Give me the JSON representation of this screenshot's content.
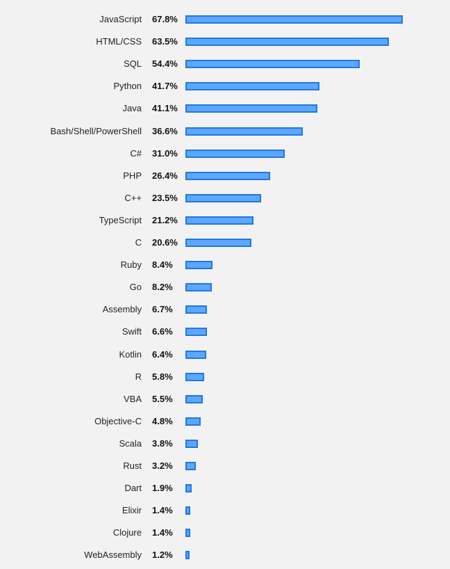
{
  "chart_data": {
    "type": "bar",
    "orientation": "horizontal",
    "categories": [
      "JavaScript",
      "HTML/CSS",
      "SQL",
      "Python",
      "Java",
      "Bash/Shell/PowerShell",
      "C#",
      "PHP",
      "C++",
      "TypeScript",
      "C",
      "Ruby",
      "Go",
      "Assembly",
      "Swift",
      "Kotlin",
      "R",
      "VBA",
      "Objective-C",
      "Scala",
      "Rust",
      "Dart",
      "Elixir",
      "Clojure",
      "WebAssembly"
    ],
    "values": [
      67.8,
      63.5,
      54.4,
      41.7,
      41.1,
      36.6,
      31.0,
      26.4,
      23.5,
      21.2,
      20.6,
      8.4,
      8.2,
      6.7,
      6.6,
      6.4,
      5.8,
      5.5,
      4.8,
      3.8,
      3.2,
      1.9,
      1.4,
      1.4,
      1.2
    ],
    "value_labels": [
      "67.8%",
      "63.5%",
      "54.4%",
      "41.7%",
      "41.1%",
      "36.6%",
      "31.0%",
      "26.4%",
      "23.5%",
      "21.2%",
      "20.6%",
      "8.4%",
      "8.2%",
      "6.7%",
      "6.6%",
      "6.4%",
      "5.8%",
      "5.5%",
      "4.8%",
      "3.8%",
      "3.2%",
      "1.9%",
      "1.4%",
      "1.4%",
      "1.2%"
    ],
    "unit": "%",
    "title": "",
    "xlabel": "",
    "ylabel": "",
    "xlim": [
      0,
      67.8
    ],
    "grid": false,
    "legend": "none",
    "colors": {
      "bar_fill": "#5ca7ff",
      "bar_border": "#1f78e0",
      "background": "#f2f2f2"
    }
  }
}
